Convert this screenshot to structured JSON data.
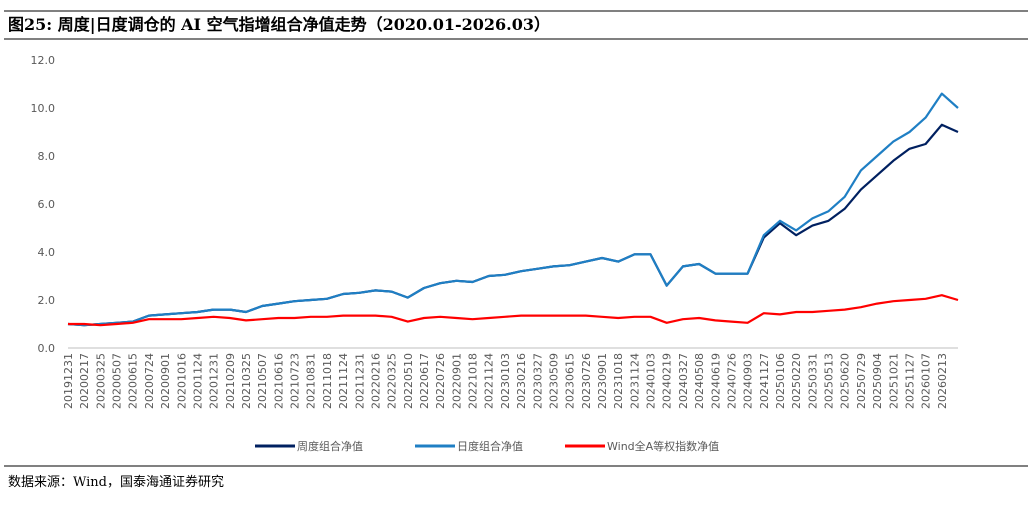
{
  "header": {
    "title": "图25:  周度|日度调仓的 AI 空气指增组合净值走势（2020.01-2026.03）"
  },
  "chart_data": {
    "type": "line",
    "categories": [
      "20191231",
      "20200217",
      "20200325",
      "20200507",
      "20200615",
      "20200724",
      "20200901",
      "20201016",
      "20201124",
      "20201231",
      "20210209",
      "20210325",
      "20210507",
      "20210616",
      "20210723",
      "20210831",
      "20211018",
      "20211124",
      "20211231",
      "20220216",
      "20220325",
      "20220510",
      "20220617",
      "20220726",
      "20220901",
      "20221018",
      "20221124",
      "20230103",
      "20230216",
      "20230327",
      "20230509",
      "20230615",
      "20230726",
      "20230901",
      "20231018",
      "20231124",
      "20240103",
      "20240219",
      "20240327",
      "20240508",
      "20240619",
      "20240726",
      "20240903",
      "20241127",
      "20250106",
      "20250220",
      "20250331",
      "20250513",
      "20250620",
      "20250729",
      "20250904",
      "20251021",
      "20251127",
      "20260107",
      "20260213",
      null
    ],
    "series": [
      {
        "name": "周度组合净值",
        "color": "#002060",
        "values": [
          1.0,
          0.95,
          1.0,
          1.05,
          1.1,
          1.35,
          1.4,
          1.45,
          1.5,
          1.6,
          1.6,
          1.5,
          1.75,
          1.85,
          1.95,
          2.0,
          2.05,
          2.25,
          2.3,
          2.4,
          2.35,
          2.1,
          2.5,
          2.7,
          2.8,
          2.75,
          3.0,
          3.05,
          3.2,
          3.3,
          3.4,
          3.45,
          3.6,
          3.75,
          3.6,
          3.9,
          3.9,
          2.6,
          3.4,
          3.5,
          3.1,
          3.1,
          3.1,
          4.6,
          5.2,
          4.7,
          5.1,
          5.3,
          5.8,
          6.6,
          7.2,
          7.8,
          8.3,
          8.5,
          9.3,
          9.0
        ]
      },
      {
        "name": "日度组合净值",
        "color": "#1f7fc4",
        "values": [
          1.0,
          0.95,
          1.0,
          1.05,
          1.1,
          1.35,
          1.4,
          1.45,
          1.5,
          1.6,
          1.6,
          1.5,
          1.75,
          1.85,
          1.95,
          2.0,
          2.05,
          2.25,
          2.3,
          2.4,
          2.35,
          2.1,
          2.5,
          2.7,
          2.8,
          2.75,
          3.0,
          3.05,
          3.2,
          3.3,
          3.4,
          3.45,
          3.6,
          3.75,
          3.6,
          3.9,
          3.9,
          2.6,
          3.4,
          3.5,
          3.1,
          3.1,
          3.1,
          4.7,
          5.3,
          4.9,
          5.4,
          5.7,
          6.3,
          7.4,
          8.0,
          8.6,
          9.0,
          9.6,
          10.6,
          10.0
        ]
      },
      {
        "name": "Wind全A等权指数净值",
        "color": "#ff0000",
        "values": [
          1.0,
          1.0,
          0.95,
          1.0,
          1.05,
          1.2,
          1.2,
          1.2,
          1.25,
          1.3,
          1.25,
          1.15,
          1.2,
          1.25,
          1.25,
          1.3,
          1.3,
          1.35,
          1.35,
          1.35,
          1.3,
          1.1,
          1.25,
          1.3,
          1.25,
          1.2,
          1.25,
          1.3,
          1.35,
          1.35,
          1.35,
          1.35,
          1.35,
          1.3,
          1.25,
          1.3,
          1.3,
          1.05,
          1.2,
          1.25,
          1.15,
          1.1,
          1.05,
          1.45,
          1.4,
          1.5,
          1.5,
          1.55,
          1.6,
          1.7,
          1.85,
          1.95,
          2.0,
          2.05,
          2.2,
          2.0
        ]
      }
    ],
    "ylim": [
      0,
      12
    ],
    "yticks": [
      {
        "value": 0,
        "label": "0.0"
      },
      {
        "value": 2,
        "label": "2.0"
      },
      {
        "value": 4,
        "label": "4.0"
      },
      {
        "value": 6,
        "label": "6.0"
      },
      {
        "value": 8,
        "label": "8.0"
      },
      {
        "value": 10,
        "label": "10.0"
      },
      {
        "value": 12,
        "label": "12.0"
      }
    ],
    "grid": false
  },
  "footer": {
    "source": "数据来源：Wind，国泰海通证券研究"
  }
}
